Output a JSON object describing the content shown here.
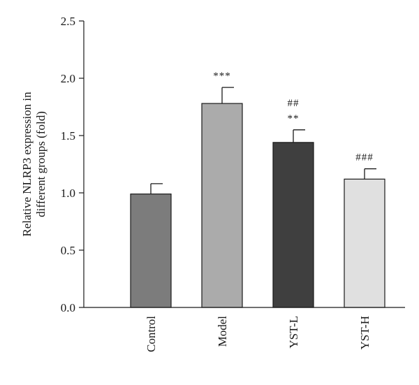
{
  "chart_data": {
    "type": "bar",
    "title": "",
    "xlabel": "",
    "ylabel_lines": [
      "Relative NLRP3 expression in",
      "different groups (fold)"
    ],
    "ylim": [
      0,
      2.5
    ],
    "yticks": [
      0.0,
      0.5,
      1.0,
      1.5,
      2.0,
      2.5
    ],
    "ytick_labels": [
      "0.0",
      "0.5",
      "1.0",
      "1.5",
      "2.0",
      "2.5"
    ],
    "categories": [
      "Control",
      "Model",
      "YST-L",
      "YST-H"
    ],
    "values": [
      0.99,
      1.78,
      1.44,
      1.12
    ],
    "errors": [
      0.09,
      0.14,
      0.11,
      0.09
    ],
    "colors": [
      "#7c7c7c",
      "#ababab",
      "#3f3f3f",
      "#e0e0e0"
    ],
    "significance": [
      [],
      [
        "***"
      ],
      [
        "##",
        "**"
      ],
      [
        "###"
      ]
    ],
    "grid": false,
    "legend": "none"
  }
}
